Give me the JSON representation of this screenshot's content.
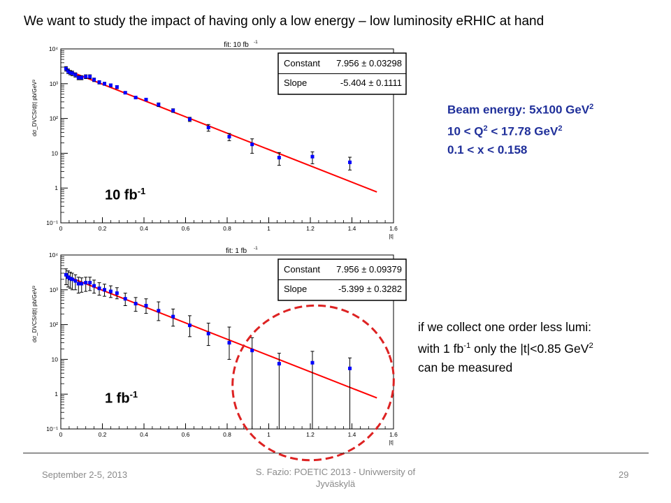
{
  "slide": {
    "title": "We want to study the impact of having only a low energy – low luminosity  eRHIC at hand"
  },
  "info": {
    "beam": "Beam energy: 5x100 GeV",
    "beam_sup": "2",
    "q2_a": "10 < Q",
    "q2_sup1": "2",
    "q2_b": " < 17.78 GeV",
    "q2_sup2": "2",
    "x": "0.1 < x < 0.158"
  },
  "note": {
    "line1": "if we collect one order less lumi:",
    "line2_a": "with 1 fb",
    "line2_sup1": "-1",
    "line2_b": " only the |t|<0.85 GeV",
    "line2_sup2": "2",
    "line3": "can be measured"
  },
  "footer": {
    "date": "September 2-5, 2013",
    "center": "S. Fazio: POETIC 2013 - Univwersity of Jyväskylä",
    "page": "29"
  },
  "colors": {
    "fit": "#ff0000",
    "points": "#0000ff",
    "circle": "#dd2222",
    "info": "#1f2f9a"
  },
  "chart_data": [
    {
      "type": "scatter",
      "title": "fit: 10 fb",
      "title_sup": "-1",
      "lumi_label": "10 fb",
      "lumi_sup": "-1",
      "xlabel": "|t|",
      "ylabel": "dσ_DVCS/d|t| pb/GeV²",
      "xlim": [
        0,
        1.6
      ],
      "ylim_log10": [
        -1,
        4
      ],
      "log_y": true,
      "xticks": [
        "0",
        "0.2",
        "0.4",
        "0.6",
        "0.8",
        "1",
        "1.2",
        "1.4",
        "1.6"
      ],
      "yticks": [
        "10⁻¹",
        "1",
        "10",
        "10²",
        "10³",
        "10⁴"
      ],
      "fit": {
        "constant_label": "Constant",
        "constant": "7.956 ± 0.03298",
        "slope_label": "Slope",
        "slope": "-5.404 ± 0.1111",
        "x_range": [
          0.02,
          1.52
        ]
      },
      "x": [
        0.025,
        0.035,
        0.045,
        0.055,
        0.07,
        0.085,
        0.1,
        0.12,
        0.14,
        0.16,
        0.185,
        0.21,
        0.24,
        0.27,
        0.31,
        0.36,
        0.41,
        0.47,
        0.54,
        0.62,
        0.71,
        0.81,
        0.92,
        1.05,
        1.21,
        1.39
      ],
      "y": [
        2700,
        2300,
        2100,
        2000,
        1800,
        1500,
        1500,
        1600,
        1600,
        1300,
        1100,
        1000,
        900,
        800,
        550,
        400,
        350,
        250,
        170,
        95,
        55,
        30,
        18,
        7.5,
        8.0,
        5.5
      ],
      "err_lo": [
        2300,
        1950,
        1800,
        1700,
        1550,
        1300,
        1300,
        1400,
        1400,
        1150,
        980,
        900,
        810,
        720,
        510,
        370,
        320,
        220,
        150,
        82,
        43,
        23,
        10,
        4.5,
        5.0,
        3.3
      ],
      "err_hi": [
        3100,
        2650,
        2400,
        2300,
        2050,
        1700,
        1700,
        1800,
        1800,
        1450,
        1220,
        1100,
        990,
        880,
        590,
        430,
        380,
        280,
        190,
        108,
        67,
        37,
        26,
        10.5,
        11.0,
        7.7
      ]
    },
    {
      "type": "scatter",
      "title": "fit: 1 fb",
      "title_sup": "-1",
      "lumi_label": "1 fb",
      "lumi_sup": "-1",
      "xlabel": "|t|",
      "ylabel": "dσ_DVCS/d|t| pb/GeV²",
      "xlim": [
        0,
        1.6
      ],
      "ylim_log10": [
        -1,
        4
      ],
      "log_y": true,
      "xticks": [
        "0",
        "0.2",
        "0.4",
        "0.6",
        "0.8",
        "1",
        "1.2",
        "1.4",
        "1.6"
      ],
      "yticks": [
        "10⁻¹",
        "1",
        "10",
        "10²",
        "10³",
        "10⁴"
      ],
      "fit": {
        "constant_label": "Constant",
        "constant": "7.956 ± 0.09379",
        "slope_label": "Slope",
        "slope": "-5.399 ± 0.3282",
        "x_range": [
          0.02,
          1.52
        ]
      },
      "x": [
        0.025,
        0.035,
        0.045,
        0.055,
        0.07,
        0.085,
        0.1,
        0.12,
        0.14,
        0.16,
        0.185,
        0.21,
        0.24,
        0.27,
        0.31,
        0.36,
        0.41,
        0.47,
        0.54,
        0.62,
        0.71,
        0.81,
        0.92,
        1.05,
        1.21,
        1.39
      ],
      "y": [
        2700,
        2300,
        2100,
        2000,
        1800,
        1500,
        1500,
        1600,
        1600,
        1300,
        1100,
        1000,
        900,
        800,
        550,
        400,
        350,
        250,
        170,
        95,
        55,
        30,
        18,
        7.5,
        8.0,
        5.5
      ],
      "err_lo": [
        1400,
        1200,
        1100,
        1000,
        1000,
        800,
        850,
        900,
        950,
        800,
        700,
        650,
        600,
        550,
        350,
        240,
        210,
        130,
        90,
        45,
        25,
        10,
        0.1,
        0.1,
        0.1,
        0.1
      ],
      "err_hi": [
        4000,
        3500,
        3200,
        3000,
        2700,
        2300,
        2200,
        2300,
        2300,
        1900,
        1600,
        1450,
        1300,
        1150,
        800,
        600,
        550,
        450,
        280,
        180,
        110,
        85,
        42,
        15,
        17,
        11
      ]
    }
  ]
}
